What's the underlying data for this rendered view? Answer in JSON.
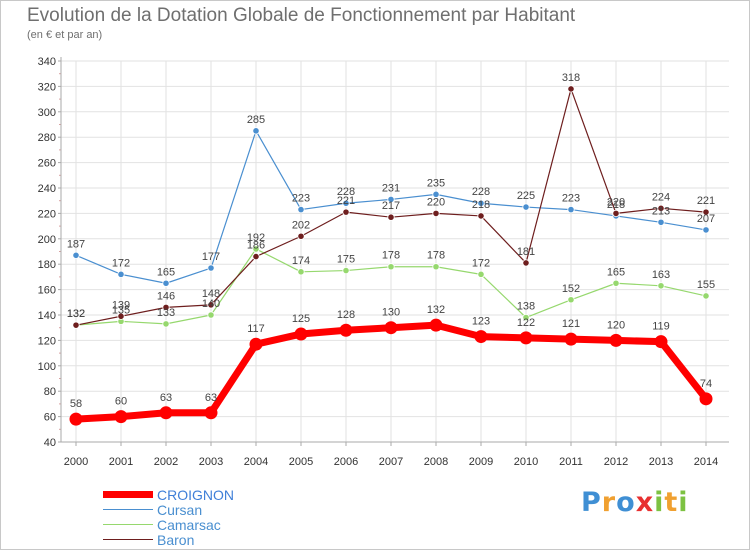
{
  "header": {
    "title": "Evolution de la Dotation Globale de Fonctionnement par Habitant",
    "subtitle": "(en € et par an)"
  },
  "logo": {
    "text": "Proxiti",
    "letters": [
      "P",
      "r",
      "o",
      "x",
      "i",
      "t",
      "i"
    ],
    "colors": [
      "#3f8fd4",
      "#f0a030",
      "#3f8fd4",
      "#e83030",
      "#7dc242",
      "#f0a030",
      "#7dc242"
    ]
  },
  "chart_data": {
    "type": "line",
    "title": "Evolution de la Dotation Globale de Fonctionnement par Habitant",
    "subtitle": "(en € et par an)",
    "xlabel": "",
    "ylabel": "",
    "x": [
      2000,
      2001,
      2002,
      2003,
      2004,
      2005,
      2006,
      2007,
      2008,
      2009,
      2010,
      2011,
      2012,
      2013,
      2014
    ],
    "y_ticks": [
      40,
      60,
      80,
      100,
      120,
      140,
      160,
      180,
      200,
      220,
      240,
      260,
      280,
      300,
      320,
      340
    ],
    "ylim": [
      40,
      340
    ],
    "grid": true,
    "legend_placement": "bottom-left",
    "series": [
      {
        "name": "Cursan",
        "color": "#4a8fd0",
        "values": [
          187,
          172,
          165,
          177,
          285,
          223,
          228,
          231,
          235,
          228,
          225,
          223,
          218,
          213,
          207
        ]
      },
      {
        "name": "Camarsac",
        "color": "#96d86e",
        "values": [
          132,
          135,
          133,
          140,
          192,
          174,
          175,
          178,
          178,
          172,
          138,
          152,
          165,
          163,
          155
        ]
      },
      {
        "name": "Baron",
        "color": "#6e1e1e",
        "values": [
          132,
          139,
          146,
          148,
          186,
          202,
          221,
          217,
          220,
          218,
          181,
          318,
          220,
          224,
          221
        ]
      },
      {
        "name": "CROIGNON",
        "color": "#ff0000",
        "values": [
          58,
          60,
          63,
          63,
          117,
          125,
          128,
          130,
          132,
          123,
          122,
          121,
          120,
          119,
          74
        ]
      }
    ]
  },
  "legend": [
    {
      "name": "CROIGNON",
      "color": "#ff0000",
      "text_color": "#3f7fd8"
    },
    {
      "name": "Cursan",
      "color": "#4a8fd0",
      "text_color": "#4a8fd0"
    },
    {
      "name": "Camarsac",
      "color": "#96d86e",
      "text_color": "#4a8fd0"
    },
    {
      "name": "Baron",
      "color": "#6e1e1e",
      "text_color": "#4a8fd0"
    }
  ]
}
